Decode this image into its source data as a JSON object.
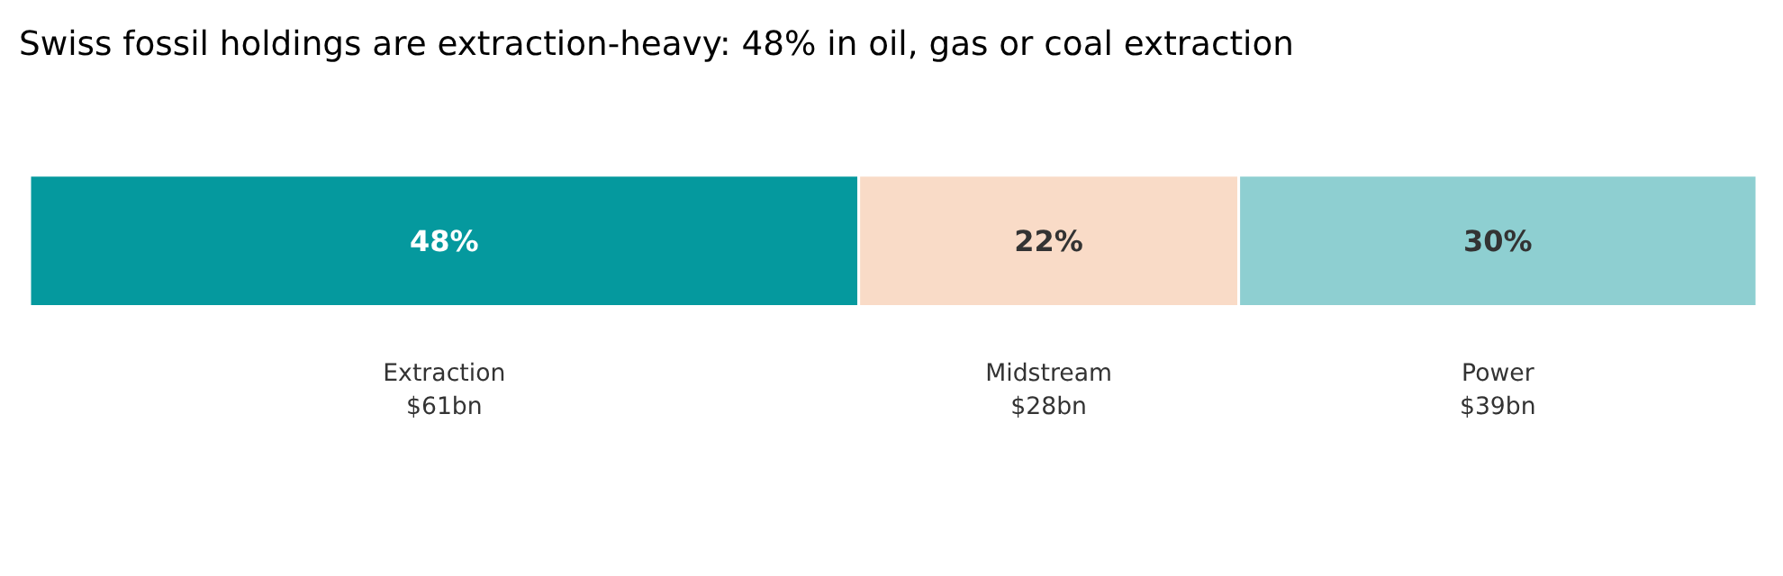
{
  "chart_data": {
    "type": "bar",
    "orientation": "horizontal",
    "stacked": true,
    "title": "Swiss fossil holdings are extraction-heavy: 48% in oil, gas or coal extraction",
    "categories": [
      null
    ],
    "series": [
      {
        "name": "Extraction",
        "color": "#05999e",
        "values": [
          48
        ],
        "value_labels": [
          "48%"
        ]
      },
      {
        "name": "Midstream",
        "color": "#f9dbc7",
        "values": [
          22
        ],
        "value_labels": [
          "22%"
        ]
      },
      {
        "name": "Power",
        "color": "#8ecfd1",
        "values": [
          30
        ],
        "value_labels": [
          "30%"
        ]
      }
    ],
    "annotations": [
      "$61bn",
      "$28bn",
      "$39bn"
    ],
    "xlim": [
      0,
      100
    ],
    "tick_labels": false,
    "grid": false,
    "legend": false
  }
}
